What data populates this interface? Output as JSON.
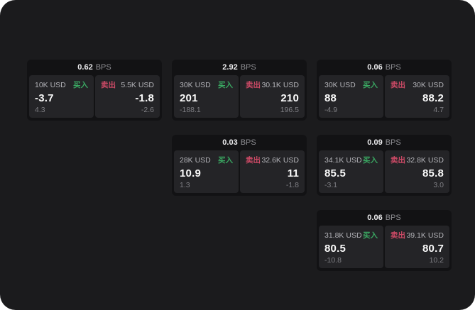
{
  "page": {
    "title": "quote-tiles-board"
  },
  "colors": {
    "page-bg": "#1b1b1d",
    "card-bg": "#121214",
    "panel-bg": "#242427",
    "buy-color": "#3aa862",
    "sell-color": "#cc4a66"
  },
  "labels": {
    "bps_unit": "BPS",
    "buy": "买入",
    "sell": "卖出"
  },
  "cards": [
    {
      "col": 1,
      "row": 1,
      "bps": "0.62",
      "buy": {
        "size": "10K USD",
        "value": "-3.7",
        "sub": "4.3"
      },
      "sell": {
        "size": "5.5K USD",
        "value": "-1.8",
        "sub": "-2.6"
      }
    },
    {
      "col": 2,
      "row": 1,
      "bps": "2.92",
      "buy": {
        "size": "30K USD",
        "value": "201",
        "sub": "-188.1"
      },
      "sell": {
        "size": "30.1K USD",
        "value": "210",
        "sub": "196.5"
      }
    },
    {
      "col": 3,
      "row": 1,
      "bps": "0.06",
      "buy": {
        "size": "30K USD",
        "value": "88",
        "sub": "-4.9"
      },
      "sell": {
        "size": "30K USD",
        "value": "88.2",
        "sub": "4.7"
      }
    },
    {
      "col": 2,
      "row": 2,
      "bps": "0.03",
      "buy": {
        "size": "28K USD",
        "value": "10.9",
        "sub": "1.3"
      },
      "sell": {
        "size": "32.6K USD",
        "value": "11",
        "sub": "-1.8"
      }
    },
    {
      "col": 3,
      "row": 2,
      "bps": "0.09",
      "buy": {
        "size": "34.1K USD",
        "value": "85.5",
        "sub": "-3.1"
      },
      "sell": {
        "size": "32.8K USD",
        "value": "85.8",
        "sub": "3.0"
      }
    },
    {
      "col": 3,
      "row": 3,
      "bps": "0.06",
      "buy": {
        "size": "31.8K USD",
        "value": "80.5",
        "sub": "-10.8"
      },
      "sell": {
        "size": "39.1K USD",
        "value": "80.7",
        "sub": "10.2"
      }
    }
  ]
}
